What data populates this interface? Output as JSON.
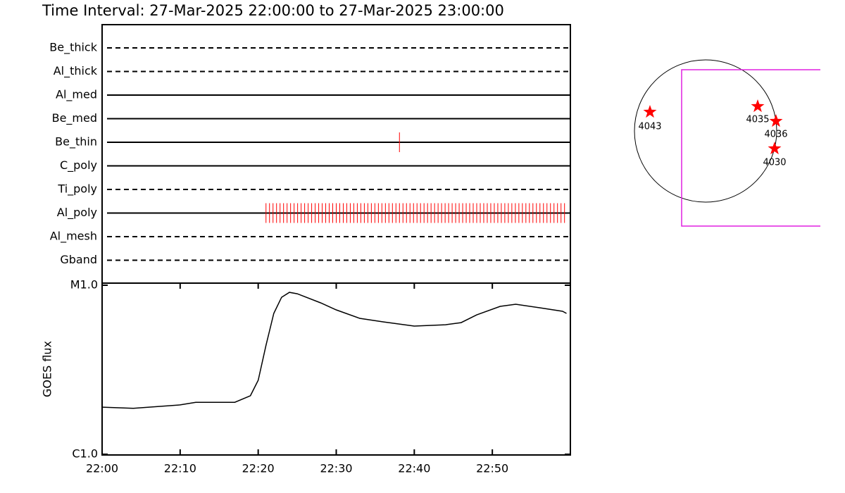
{
  "chart_data": {
    "type": "line",
    "title": "Time Interval: 27-Mar-2025 22:00:00 to 27-Mar-2025 23:00:00",
    "rows": [
      {
        "name": "Be_thick",
        "style": "dashed",
        "marks": []
      },
      {
        "name": "Al_thick",
        "style": "dashed",
        "marks": []
      },
      {
        "name": "Al_med",
        "style": "solid",
        "marks": []
      },
      {
        "name": "Be_med",
        "style": "solid",
        "marks": []
      },
      {
        "name": "Be_thin",
        "style": "solid",
        "marks": [
          38.1
        ]
      },
      {
        "name": "C_poly",
        "style": "solid",
        "marks": []
      },
      {
        "name": "Ti_poly",
        "style": "dashed",
        "marks": []
      },
      {
        "name": "Al_poly",
        "style": "solid",
        "marks": [
          21,
          21.45,
          21.9,
          22.35,
          22.8,
          23.25,
          23.7,
          24.15,
          24.6,
          25.05,
          25.5,
          25.95,
          26.4,
          26.85,
          27.3,
          27.75,
          28.2,
          28.65,
          29.1,
          29.55,
          30,
          30.45,
          30.9,
          31.35,
          31.8,
          32.25,
          32.7,
          33.15,
          33.6,
          34.05,
          34.5,
          34.95,
          35.4,
          35.85,
          36.3,
          36.75,
          37.2,
          37.65,
          38.1,
          38.55,
          39,
          39.45,
          39.9,
          40.35,
          40.8,
          41.25,
          41.7,
          42.15,
          42.6,
          43.05,
          43.5,
          43.95,
          44.4,
          44.85,
          45.3,
          45.75,
          46.2,
          46.65,
          47.1,
          47.55,
          48,
          48.45,
          48.9,
          49.35,
          49.8,
          50.25,
          50.7,
          51.15,
          51.6,
          52.05,
          52.5,
          52.95,
          53.4,
          53.85,
          54.3,
          54.75,
          55.2,
          55.65,
          56.1,
          56.55,
          57,
          57.45,
          57.9,
          58.35,
          58.8,
          59.25
        ]
      },
      {
        "name": "Al_mesh",
        "style": "dashed",
        "marks": []
      },
      {
        "name": "Gband",
        "style": "dashed",
        "marks": []
      }
    ],
    "x": [
      0,
      4,
      10,
      12,
      17,
      19,
      20,
      21,
      22,
      23,
      24,
      25,
      28,
      30,
      33,
      36,
      40,
      44,
      46,
      48,
      51,
      53,
      56,
      59,
      59.5
    ],
    "values": [
      1.9e-06,
      1.87e-06,
      1.96e-06,
      2.03e-06,
      2.03e-06,
      2.22e-06,
      2.74e-06,
      4.42e-06,
      6.81e-06,
      8.49e-06,
      9.08e-06,
      8.9e-06,
      7.87e-06,
      7.15e-06,
      6.37e-06,
      6.07e-06,
      5.73e-06,
      5.84e-06,
      6.01e-06,
      6.68e-06,
      7.5e-06,
      7.72e-06,
      7.36e-06,
      7.01e-06,
      6.81e-06
    ],
    "xlim": [
      0,
      60
    ],
    "xticks": [
      {
        "value": 0,
        "label": "22:00"
      },
      {
        "value": 10,
        "label": "22:10"
      },
      {
        "value": 20,
        "label": "22:20"
      },
      {
        "value": 30,
        "label": "22:30"
      },
      {
        "value": 40,
        "label": "22:40"
      },
      {
        "value": 50,
        "label": "22:50"
      }
    ],
    "ylim": [
      1e-06,
      1e-05
    ],
    "yticks": [
      {
        "value": 1e-06,
        "label": "C1.0"
      },
      {
        "value": 1e-05,
        "label": "M1.0"
      }
    ],
    "log_y": true,
    "ylabel": "GOES flux",
    "color": "#000000",
    "mark_color": "#ff0000"
  },
  "sun_map": {
    "regions": [
      "4043",
      "4035",
      "4036",
      "4030"
    ]
  }
}
